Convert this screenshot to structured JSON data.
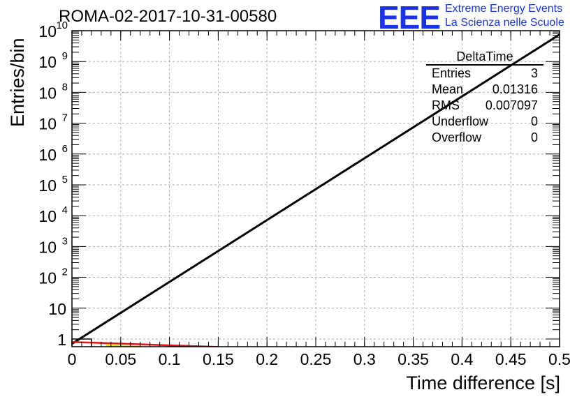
{
  "header": {
    "title": "ROMA-02-2017-10-31-00580",
    "logo_text": "EEE",
    "logo_line1": "Extreme Energy Events",
    "logo_line2": "La Scienza nelle Scuole"
  },
  "stats_box": {
    "title": "DeltaTime",
    "rows": [
      {
        "label": "Entries",
        "value": "3"
      },
      {
        "label": "Mean",
        "value": "0.01316"
      },
      {
        "label": "RMS",
        "value": "0.007097"
      },
      {
        "label": "Underflow",
        "value": "0"
      },
      {
        "label": "Overflow",
        "value": "0"
      }
    ]
  },
  "chart_data": {
    "type": "line",
    "title": "ROMA-02-2017-10-31-00580",
    "xlabel": "Time difference [s]",
    "ylabel": "Entries/bin",
    "xlim": [
      0,
      0.5
    ],
    "ylim_log10": [
      -0.25,
      10
    ],
    "yscale": "log",
    "grid": true,
    "x_ticks": [
      "0",
      "0.05",
      "0.1",
      "0.15",
      "0.2",
      "0.25",
      "0.3",
      "0.35",
      "0.4",
      "0.45",
      "0.5"
    ],
    "x_tick_values": [
      0,
      0.05,
      0.1,
      0.15,
      0.2,
      0.25,
      0.3,
      0.35,
      0.4,
      0.45,
      0.5
    ],
    "y_ticks": [
      {
        "value": 1,
        "base": "1",
        "exp": ""
      },
      {
        "value": 10,
        "base": "10",
        "exp": ""
      },
      {
        "value": 100,
        "base": "10",
        "exp": "2"
      },
      {
        "value": 1000,
        "base": "10",
        "exp": "3"
      },
      {
        "value": 10000,
        "base": "10",
        "exp": "4"
      },
      {
        "value": 100000,
        "base": "10",
        "exp": "5"
      },
      {
        "value": 1000000,
        "base": "10",
        "exp": "6"
      },
      {
        "value": 10000000,
        "base": "10",
        "exp": "7"
      },
      {
        "value": 100000000,
        "base": "10",
        "exp": "8"
      },
      {
        "value": 1000000000,
        "base": "10",
        "exp": "9"
      },
      {
        "value": 10000000000,
        "base": "10",
        "exp": "10"
      }
    ],
    "series": [
      {
        "color": "#000000",
        "x": [
          0,
          0.5
        ],
        "y": [
          0.7,
          7500000000
        ]
      },
      {
        "color": "#ee1111",
        "x": [
          0,
          0.15
        ],
        "y": [
          0.8,
          0.55
        ]
      },
      {
        "color": "#f2e000",
        "x": [
          0.035,
          0.07
        ],
        "y": [
          0.62,
          0.57
        ]
      }
    ],
    "histogram": {
      "color": "#000000",
      "edges": [
        0,
        0.02
      ],
      "values": [
        1
      ]
    }
  }
}
